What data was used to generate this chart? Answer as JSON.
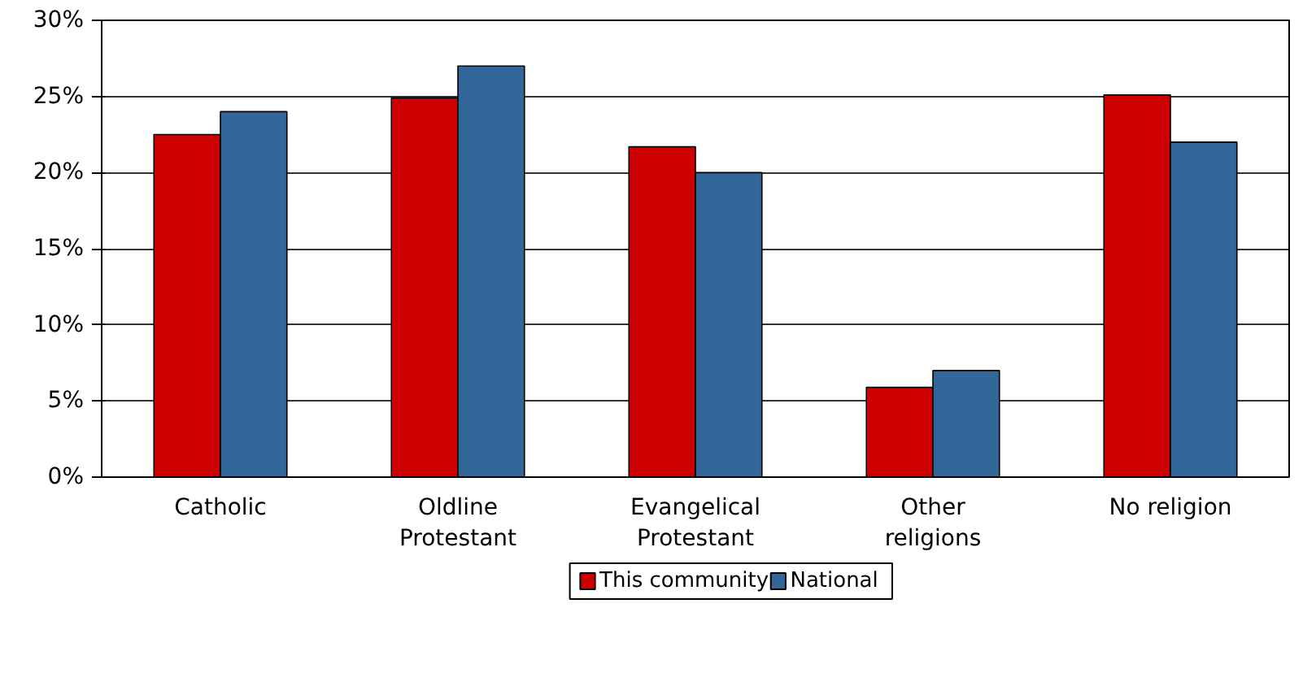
{
  "chart_data": {
    "type": "bar",
    "categories": [
      "Catholic",
      "Oldline\nProtestant",
      "Evangelical\nProtestant",
      "Other\nreligions",
      "No religion"
    ],
    "series": [
      {
        "name": "This community",
        "color": "#cc0000",
        "values": [
          22.5,
          24.9,
          21.7,
          5.9,
          25.1
        ]
      },
      {
        "name": "National",
        "color": "#336699",
        "values": [
          24,
          27,
          20,
          7,
          22
        ]
      }
    ],
    "ylim": [
      0,
      30
    ],
    "yticks": [
      {
        "value": 0,
        "label": "0%"
      },
      {
        "value": 5,
        "label": "5%"
      },
      {
        "value": 10,
        "label": "10%"
      },
      {
        "value": 15,
        "label": "15%"
      },
      {
        "value": 20,
        "label": "20%"
      },
      {
        "value": 25,
        "label": "25%"
      },
      {
        "value": 30,
        "label": "30%"
      }
    ],
    "grid": "y",
    "legend": "bottom"
  }
}
